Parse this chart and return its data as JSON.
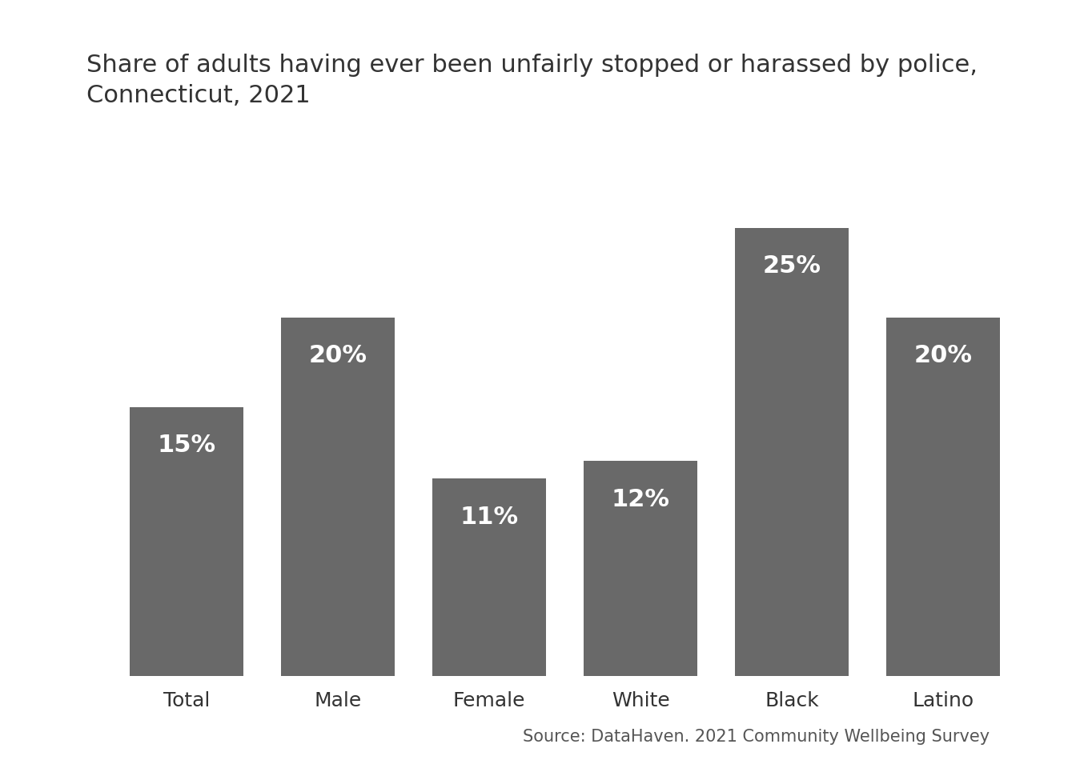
{
  "title": "Share of adults having ever been unfairly stopped or harassed by police,\nConnecticut, 2021",
  "categories": [
    "Total",
    "Male",
    "Female",
    "White",
    "Black",
    "Latino"
  ],
  "values": [
    15,
    20,
    11,
    12,
    25,
    20
  ],
  "bar_color": "#696969",
  "label_color": "#ffffff",
  "background_color": "#ffffff",
  "source_text": "Source: DataHaven. 2021 Community Wellbeing Survey",
  "title_fontsize": 22,
  "label_fontsize": 22,
  "tick_fontsize": 18,
  "source_fontsize": 15,
  "ylim": [
    0,
    30
  ],
  "bar_width": 0.75
}
